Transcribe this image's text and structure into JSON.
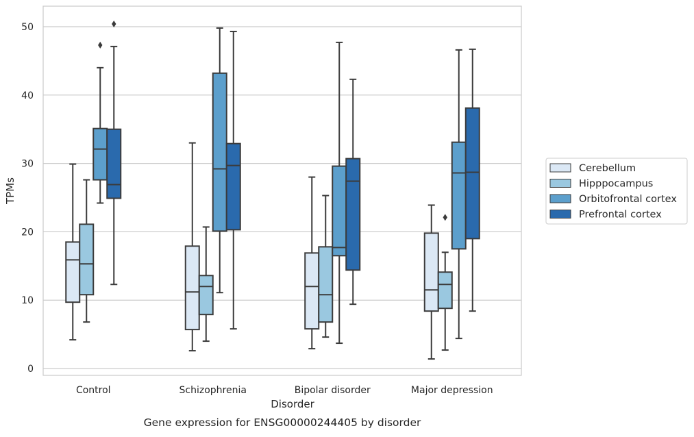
{
  "chart_data": {
    "type": "boxplot",
    "caption": "Gene expression for ENSG00000244405 by disorder",
    "xlabel": "Disorder",
    "ylabel": "TPMs",
    "ylim": [
      -1,
      53
    ],
    "yticks": [
      0,
      10,
      20,
      30,
      40,
      50
    ],
    "ytick_labels": [
      "0",
      "10",
      "20",
      "30",
      "40",
      "50"
    ],
    "grid": "horizontal",
    "legend_position": "right",
    "categories": [
      "Control",
      "Schizophrenia",
      "Bipolar disorder",
      "Major depression"
    ],
    "series": [
      {
        "name": "Cerebellum",
        "color": "#dbe8f5",
        "boxes": [
          {
            "whisker_low": 4.2,
            "q1": 9.7,
            "median": 15.9,
            "q3": 18.5,
            "whisker_high": 29.9,
            "outliers": []
          },
          {
            "whisker_low": 2.6,
            "q1": 5.7,
            "median": 11.2,
            "q3": 17.9,
            "whisker_high": 33.0,
            "outliers": []
          },
          {
            "whisker_low": 2.9,
            "q1": 5.8,
            "median": 12.0,
            "q3": 16.9,
            "whisker_high": 28.0,
            "outliers": []
          },
          {
            "whisker_low": 1.4,
            "q1": 8.4,
            "median": 11.5,
            "q3": 19.8,
            "whisker_high": 23.9,
            "outliers": []
          }
        ]
      },
      {
        "name": "Hipppocampus",
        "color": "#9ac8e0",
        "boxes": [
          {
            "whisker_low": 6.8,
            "q1": 10.8,
            "median": 15.3,
            "q3": 21.1,
            "whisker_high": 27.6,
            "outliers": []
          },
          {
            "whisker_low": 4.0,
            "q1": 7.9,
            "median": 12.0,
            "q3": 13.6,
            "whisker_high": 20.7,
            "outliers": []
          },
          {
            "whisker_low": 4.6,
            "q1": 6.8,
            "median": 10.8,
            "q3": 17.8,
            "whisker_high": 25.3,
            "outliers": []
          },
          {
            "whisker_low": 2.7,
            "q1": 8.8,
            "median": 12.3,
            "q3": 14.1,
            "whisker_high": 17.0,
            "outliers": [
              22.1
            ]
          }
        ]
      },
      {
        "name": "Orbitofrontal cortex",
        "color": "#5c9fcc",
        "boxes": [
          {
            "whisker_low": 24.2,
            "q1": 27.6,
            "median": 32.1,
            "q3": 35.1,
            "whisker_high": 44.0,
            "outliers": [
              47.3
            ]
          },
          {
            "whisker_low": 11.1,
            "q1": 20.1,
            "median": 29.2,
            "q3": 43.2,
            "whisker_high": 49.8,
            "outliers": []
          },
          {
            "whisker_low": 3.7,
            "q1": 16.5,
            "median": 17.7,
            "q3": 29.6,
            "whisker_high": 47.7,
            "outliers": []
          },
          {
            "whisker_low": 4.4,
            "q1": 17.5,
            "median": 28.6,
            "q3": 33.1,
            "whisker_high": 46.6,
            "outliers": []
          }
        ]
      },
      {
        "name": "Prefrontal cortex",
        "color": "#2a6aad",
        "boxes": [
          {
            "whisker_low": 12.3,
            "q1": 24.9,
            "median": 26.9,
            "q3": 35.0,
            "whisker_high": 47.1,
            "outliers": [
              50.4
            ]
          },
          {
            "whisker_low": 5.8,
            "q1": 20.3,
            "median": 29.7,
            "q3": 32.9,
            "whisker_high": 49.3,
            "outliers": []
          },
          {
            "whisker_low": 9.4,
            "q1": 14.4,
            "median": 27.4,
            "q3": 30.7,
            "whisker_high": 42.3,
            "outliers": []
          },
          {
            "whisker_low": 8.4,
            "q1": 19.0,
            "median": 28.7,
            "q3": 38.1,
            "whisker_high": 46.7,
            "outliers": []
          }
        ]
      }
    ]
  }
}
